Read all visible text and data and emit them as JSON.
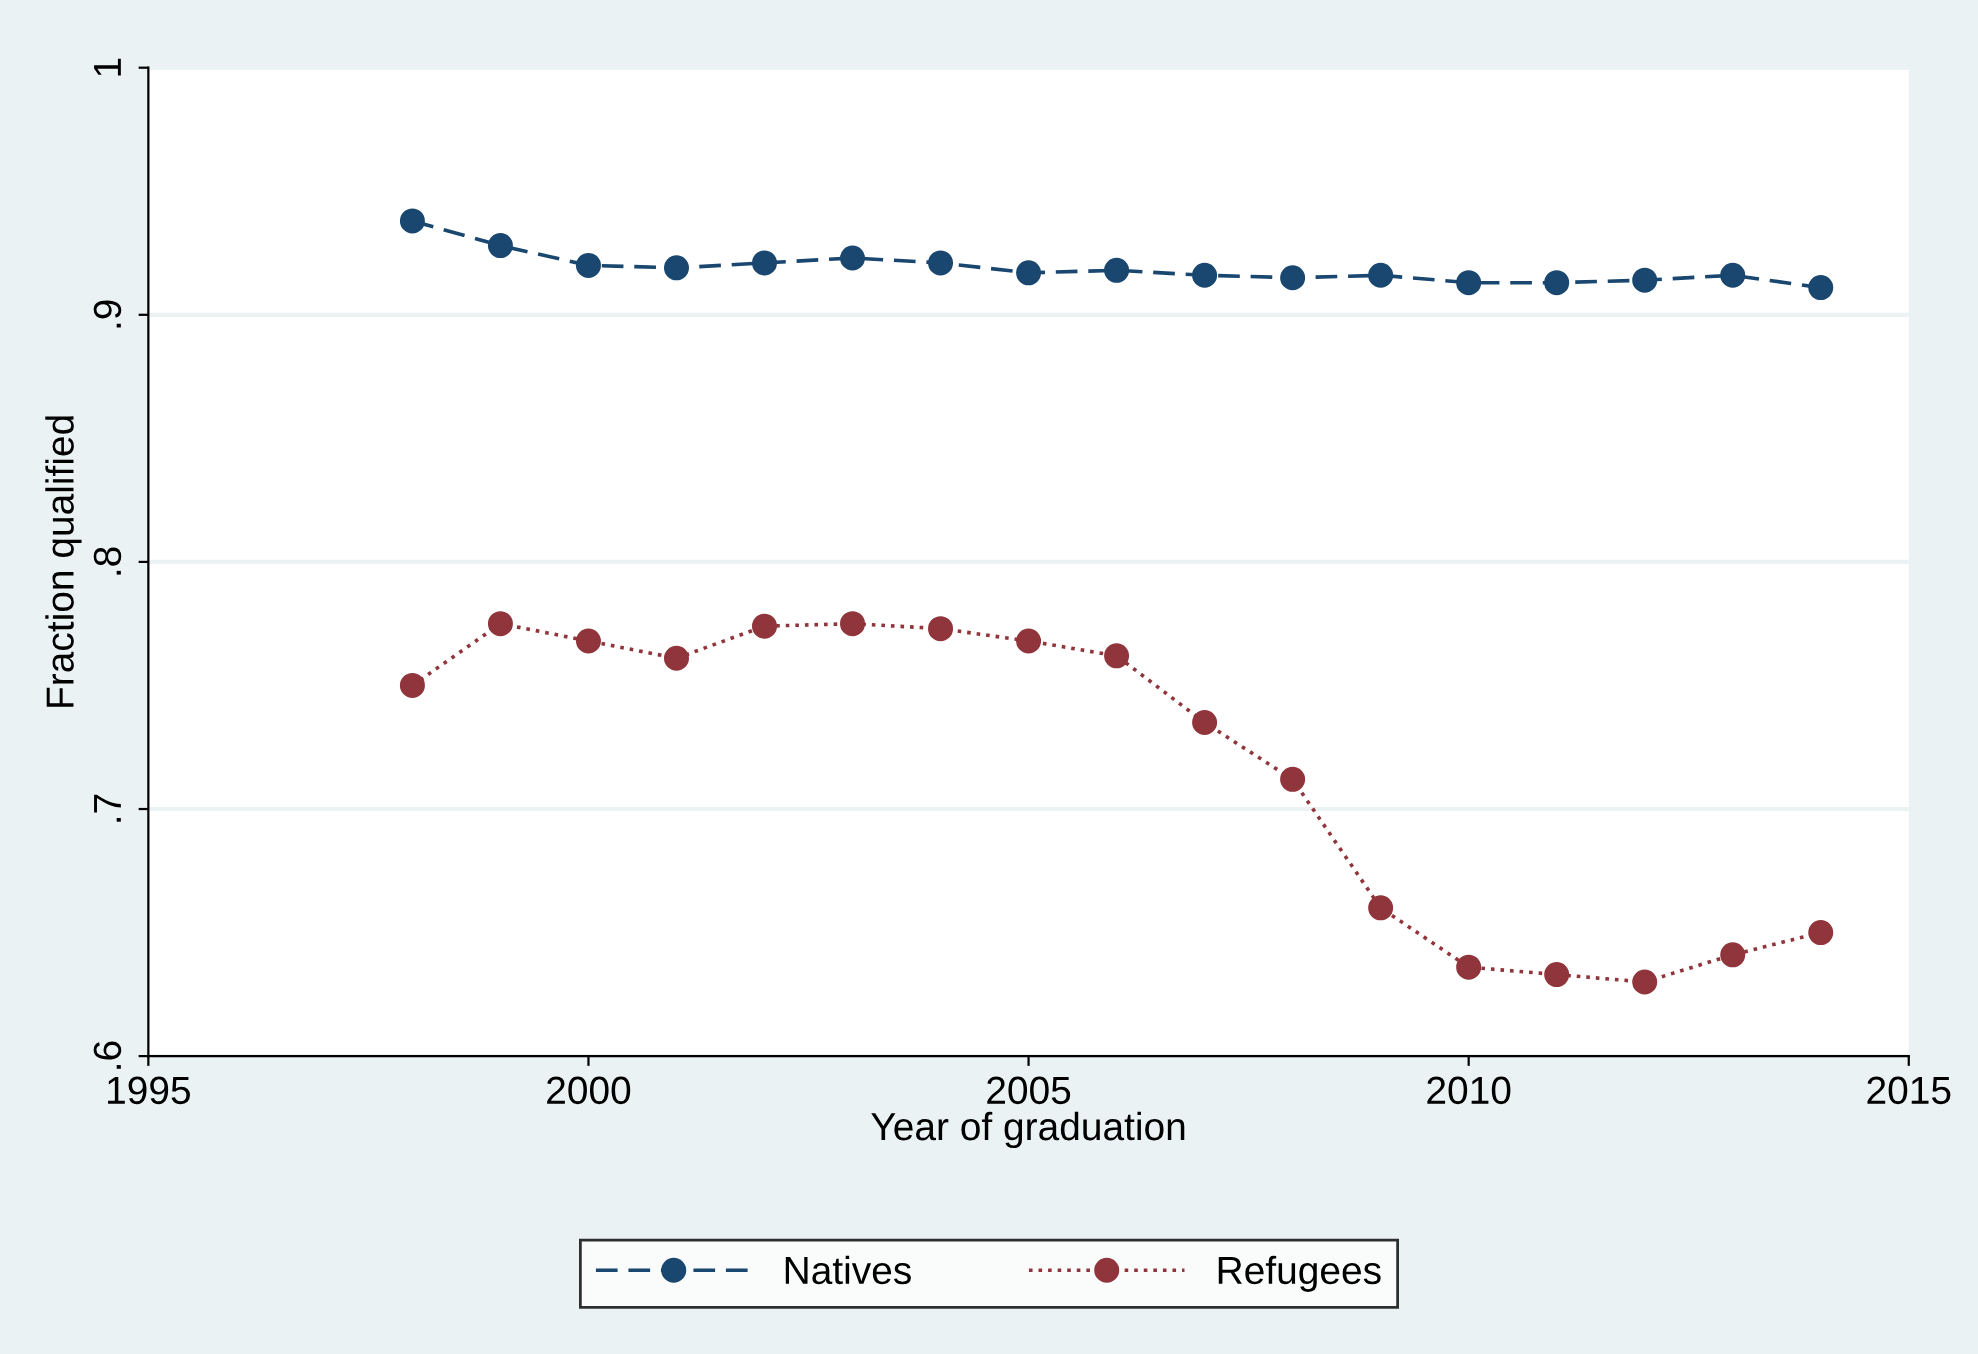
{
  "chart_data": {
    "type": "line",
    "xlabel": "Year of graduation",
    "ylabel": "Fraction qualified",
    "x": [
      1998,
      1999,
      2000,
      2001,
      2002,
      2003,
      2004,
      2005,
      2006,
      2007,
      2008,
      2009,
      2010,
      2011,
      2012,
      2013,
      2014
    ],
    "series": [
      {
        "name": "Natives",
        "color": "#1a476f",
        "line_style": "dashed",
        "values": [
          0.938,
          0.928,
          0.92,
          0.919,
          0.921,
          0.923,
          0.921,
          0.917,
          0.918,
          0.916,
          0.915,
          0.916,
          0.913,
          0.913,
          0.914,
          0.916,
          0.911
        ]
      },
      {
        "name": "Refugees",
        "color": "#90353b",
        "line_style": "dotted",
        "values": [
          0.75,
          0.775,
          0.768,
          0.761,
          0.774,
          0.775,
          0.773,
          0.768,
          0.762,
          0.735,
          0.712,
          0.66,
          0.636,
          0.633,
          0.63,
          0.641,
          0.65
        ]
      }
    ],
    "xlim": [
      1995,
      2015
    ],
    "xticks": [
      1995,
      2000,
      2005,
      2010,
      2015
    ],
    "ylim": [
      0.6,
      1
    ],
    "yticks": [
      {
        "value": 0.6,
        "label": ".6"
      },
      {
        "value": 0.7,
        "label": ".7"
      },
      {
        "value": 0.8,
        "label": ".8"
      },
      {
        "value": 0.9,
        "label": ".9"
      },
      {
        "value": 1,
        "label": "1"
      }
    ],
    "grid": "y",
    "legend": "bottom",
    "marker": "circle"
  }
}
